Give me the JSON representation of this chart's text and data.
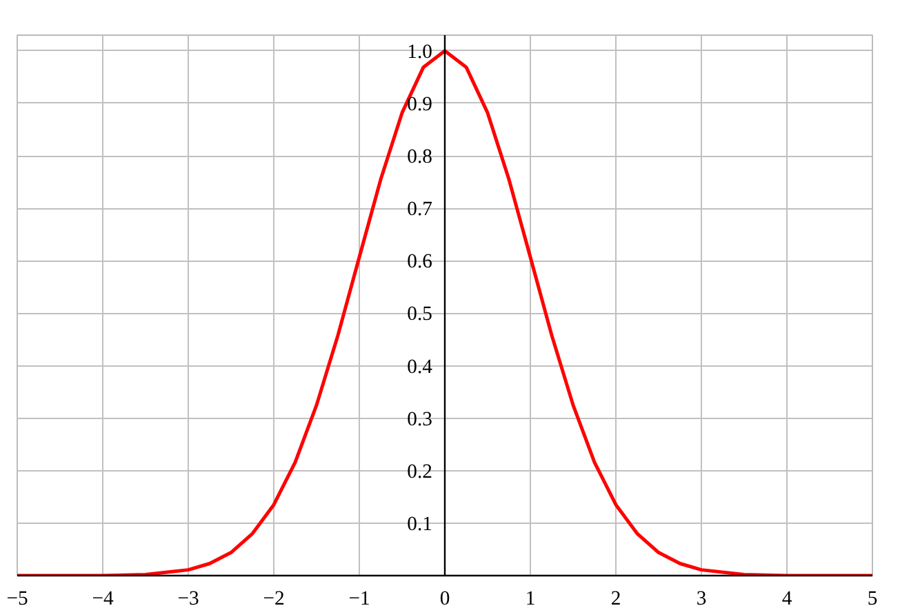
{
  "chart_data": {
    "type": "line",
    "x": [
      -5,
      -4.5,
      -4,
      -3.5,
      -3,
      -2.75,
      -2.5,
      -2.25,
      -2,
      -1.75,
      -1.5,
      -1.25,
      -1,
      -0.75,
      -0.5,
      -0.25,
      0,
      0.25,
      0.5,
      0.75,
      1,
      1.25,
      1.5,
      1.75,
      2,
      2.25,
      2.5,
      2.75,
      3,
      3.5,
      4,
      4.5,
      5
    ],
    "series": [
      {
        "color": "#ff0000",
        "values": [
          0,
          0,
          0,
          0.002,
          0.011,
          0.023,
          0.044,
          0.08,
          0.135,
          0.216,
          0.325,
          0.458,
          0.607,
          0.755,
          0.882,
          0.969,
          1.0,
          0.969,
          0.882,
          0.755,
          0.607,
          0.458,
          0.325,
          0.216,
          0.135,
          0.08,
          0.044,
          0.023,
          0.011,
          0.002,
          0,
          0,
          0
        ]
      }
    ],
    "xlim": [
      -5,
      5
    ],
    "ylim": [
      0,
      1.03
    ],
    "xticks": [
      -5,
      -4,
      -3,
      -2,
      -1,
      0,
      1,
      2,
      3,
      4,
      5
    ],
    "yticks": [
      0.1,
      0.2,
      0.3,
      0.4,
      0.5,
      0.6,
      0.7,
      0.8,
      0.9,
      {
        "value": 1,
        "label": "1.0"
      }
    ],
    "grid": true,
    "line_style": "solid"
  }
}
